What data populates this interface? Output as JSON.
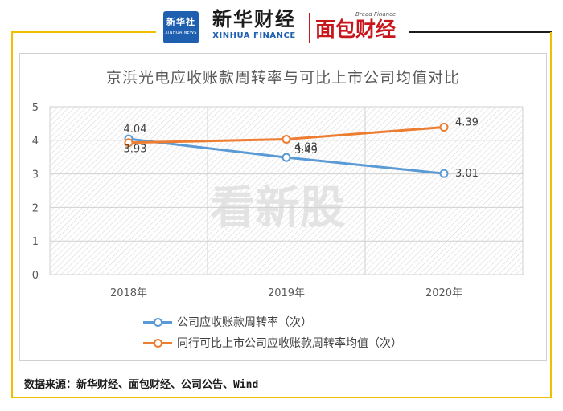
{
  "header": {
    "logo_cn": "新华社",
    "logo_en": "XINHUA NEWS",
    "brand1_cn": "新华财经",
    "brand1_en": "XINHUA FINANCE",
    "brand2_tag": "Bread Finance",
    "brand2_cn": "面包财经"
  },
  "watermark": "看新股",
  "source": "数据来源：新华财经、面包财经、公司公告、Wind",
  "colors": {
    "series1": "#5b9bd5",
    "series2": "#ed7d31",
    "frame": "#f0c000",
    "brand_red": "#c8161d"
  },
  "chart_data": {
    "type": "line",
    "title": "京浜光电应收账款周转率与可比上市公司均值对比",
    "categories": [
      "2018年",
      "2019年",
      "2020年"
    ],
    "y_ticks": [
      "0",
      "1",
      "2",
      "3",
      "4",
      "5"
    ],
    "ylim": [
      0,
      5
    ],
    "grid": true,
    "legend_position": "bottom",
    "series": [
      {
        "name": "公司应收账款周转率（次）",
        "values": [
          4.04,
          3.49,
          3.01
        ],
        "labels": [
          "4.04",
          "3.49",
          "3.01"
        ],
        "color": "#5b9bd5"
      },
      {
        "name": "同行可比上市公司应收账款周转率均值（次）",
        "values": [
          3.93,
          4.03,
          4.39
        ],
        "labels": [
          "3.93",
          "4.03",
          "4.39"
        ],
        "color": "#ed7d31"
      }
    ]
  }
}
